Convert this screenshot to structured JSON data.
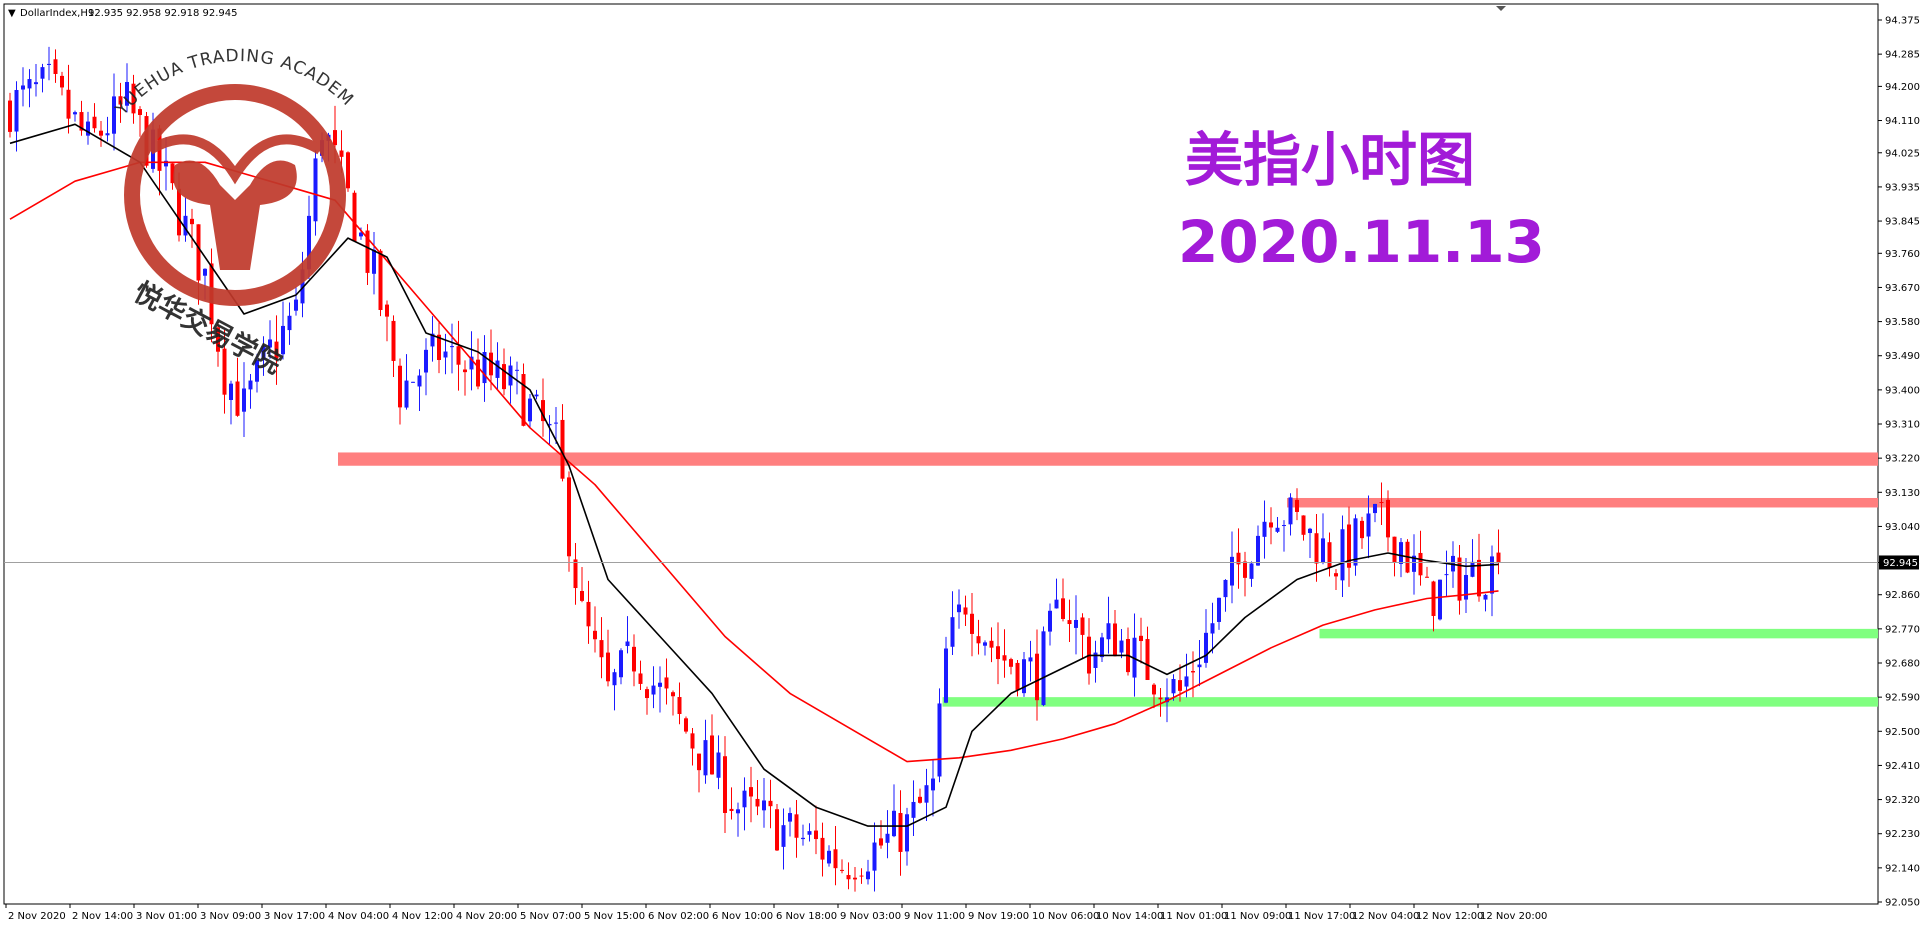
{
  "header": {
    "menu_glyph": "▼",
    "symbol": "DollarIndex,H1",
    "ohlc": "92.935 92.958 92.918 92.945"
  },
  "title": {
    "cn": "美指小时图",
    "date": "2020.11.13",
    "color": "#a21bd8"
  },
  "watermark": {
    "arc_text": "YUEHUA TRADING ACADEMY",
    "cn_text": "悦华交易学院",
    "logo_color": "#c0392b",
    "icon": "yuehua-logo-icon"
  },
  "colors": {
    "bull": "#1a1aff",
    "bear": "#ff0000",
    "ma_fast": "#000000",
    "ma_slow": "#ff0000",
    "resistance": "#ff7f7f",
    "support": "#80ff80",
    "price_tag_bg": "#000000"
  },
  "chart_data": {
    "type": "candlestick",
    "symbol": "DollarIndex",
    "timeframe": "H1",
    "ylim": [
      92.05,
      94.4
    ],
    "y_ticks": [
      "94.375",
      "94.285",
      "94.200",
      "94.110",
      "94.025",
      "93.935",
      "93.845",
      "93.760",
      "93.670",
      "93.580",
      "93.490",
      "93.400",
      "93.310",
      "93.220",
      "93.130",
      "93.040",
      "92.945",
      "92.860",
      "92.770",
      "92.680",
      "92.590",
      "92.500",
      "92.410",
      "92.320",
      "92.230",
      "92.140",
      "92.050"
    ],
    "x_ticks": [
      "2 Nov 2020",
      "2 Nov 14:00",
      "3 Nov 01:00",
      "3 Nov 09:00",
      "3 Nov 17:00",
      "4 Nov 04:00",
      "4 Nov 12:00",
      "4 Nov 20:00",
      "5 Nov 07:00",
      "5 Nov 15:00",
      "6 Nov 02:00",
      "6 Nov 10:00",
      "6 Nov 18:00",
      "9 Nov 03:00",
      "9 Nov 11:00",
      "9 Nov 19:00",
      "10 Nov 06:00",
      "10 Nov 14:00",
      "11 Nov 01:00",
      "11 Nov 09:00",
      "11 Nov 17:00",
      "12 Nov 04:00",
      "12 Nov 12:00",
      "12 Nov 20:00"
    ],
    "current_price": 92.945,
    "current_price_label": "92.945",
    "close_path": [
      [
        0,
        94.15
      ],
      [
        6,
        94.2
      ],
      [
        12,
        94.05
      ],
      [
        18,
        94.15
      ],
      [
        24,
        93.95
      ],
      [
        30,
        93.7
      ],
      [
        33,
        93.45
      ],
      [
        36,
        93.35
      ],
      [
        40,
        93.5
      ],
      [
        44,
        93.6
      ],
      [
        48,
        94.1
      ],
      [
        52,
        93.9
      ],
      [
        56,
        93.7
      ],
      [
        60,
        93.4
      ],
      [
        66,
        93.5
      ],
      [
        72,
        93.45
      ],
      [
        78,
        93.4
      ],
      [
        84,
        93.25
      ],
      [
        88,
        92.8
      ],
      [
        92,
        92.6
      ],
      [
        96,
        92.7
      ],
      [
        100,
        92.6
      ],
      [
        106,
        92.45
      ],
      [
        112,
        92.3
      ],
      [
        118,
        92.25
      ],
      [
        124,
        92.2
      ],
      [
        128,
        92.15
      ],
      [
        134,
        92.2
      ],
      [
        138,
        92.25
      ],
      [
        142,
        92.35
      ],
      [
        144,
        92.7
      ],
      [
        147,
        92.85
      ],
      [
        152,
        92.7
      ],
      [
        158,
        92.65
      ],
      [
        162,
        92.85
      ],
      [
        166,
        92.7
      ],
      [
        170,
        92.75
      ],
      [
        176,
        92.65
      ],
      [
        180,
        92.6
      ],
      [
        184,
        92.75
      ],
      [
        188,
        92.9
      ],
      [
        194,
        93.1
      ],
      [
        198,
        93.05
      ],
      [
        204,
        92.95
      ],
      [
        210,
        93.05
      ],
      [
        214,
        93.0
      ],
      [
        218,
        92.85
      ],
      [
        222,
        92.9
      ],
      [
        226,
        92.92
      ],
      [
        229,
        92.945
      ]
    ],
    "ma_fast": [
      [
        0,
        94.05
      ],
      [
        10,
        94.1
      ],
      [
        20,
        94.0
      ],
      [
        28,
        93.8
      ],
      [
        36,
        93.6
      ],
      [
        44,
        93.65
      ],
      [
        52,
        93.8
      ],
      [
        58,
        93.75
      ],
      [
        64,
        93.55
      ],
      [
        72,
        93.5
      ],
      [
        80,
        93.4
      ],
      [
        86,
        93.2
      ],
      [
        92,
        92.9
      ],
      [
        100,
        92.75
      ],
      [
        108,
        92.6
      ],
      [
        116,
        92.4
      ],
      [
        124,
        92.3
      ],
      [
        132,
        92.25
      ],
      [
        138,
        92.25
      ],
      [
        144,
        92.3
      ],
      [
        148,
        92.5
      ],
      [
        154,
        92.6
      ],
      [
        160,
        92.65
      ],
      [
        166,
        92.7
      ],
      [
        172,
        92.7
      ],
      [
        178,
        92.65
      ],
      [
        184,
        92.7
      ],
      [
        190,
        92.8
      ],
      [
        198,
        92.9
      ],
      [
        206,
        92.95
      ],
      [
        212,
        92.97
      ],
      [
        218,
        92.95
      ],
      [
        224,
        92.935
      ],
      [
        229,
        92.94
      ]
    ],
    "ma_slow": [
      [
        0,
        93.85
      ],
      [
        10,
        93.95
      ],
      [
        20,
        94.0
      ],
      [
        30,
        94.0
      ],
      [
        40,
        93.95
      ],
      [
        50,
        93.9
      ],
      [
        60,
        93.7
      ],
      [
        70,
        93.5
      ],
      [
        80,
        93.3
      ],
      [
        90,
        93.15
      ],
      [
        100,
        92.95
      ],
      [
        110,
        92.75
      ],
      [
        120,
        92.6
      ],
      [
        130,
        92.5
      ],
      [
        138,
        92.42
      ],
      [
        146,
        92.43
      ],
      [
        154,
        92.45
      ],
      [
        162,
        92.48
      ],
      [
        170,
        92.52
      ],
      [
        178,
        92.58
      ],
      [
        186,
        92.65
      ],
      [
        194,
        92.72
      ],
      [
        202,
        92.78
      ],
      [
        210,
        92.82
      ],
      [
        218,
        92.85
      ],
      [
        224,
        92.86
      ],
      [
        229,
        92.87
      ]
    ],
    "resistance_zones": [
      {
        "from_index": 52,
        "low": 93.2,
        "high": 93.235
      },
      {
        "from_index": 198,
        "low": 93.09,
        "high": 93.115
      }
    ],
    "support_zones": [
      {
        "from_index": 203,
        "low": 92.745,
        "high": 92.77
      },
      {
        "from_index": 145,
        "low": 92.565,
        "high": 92.59
      }
    ]
  }
}
